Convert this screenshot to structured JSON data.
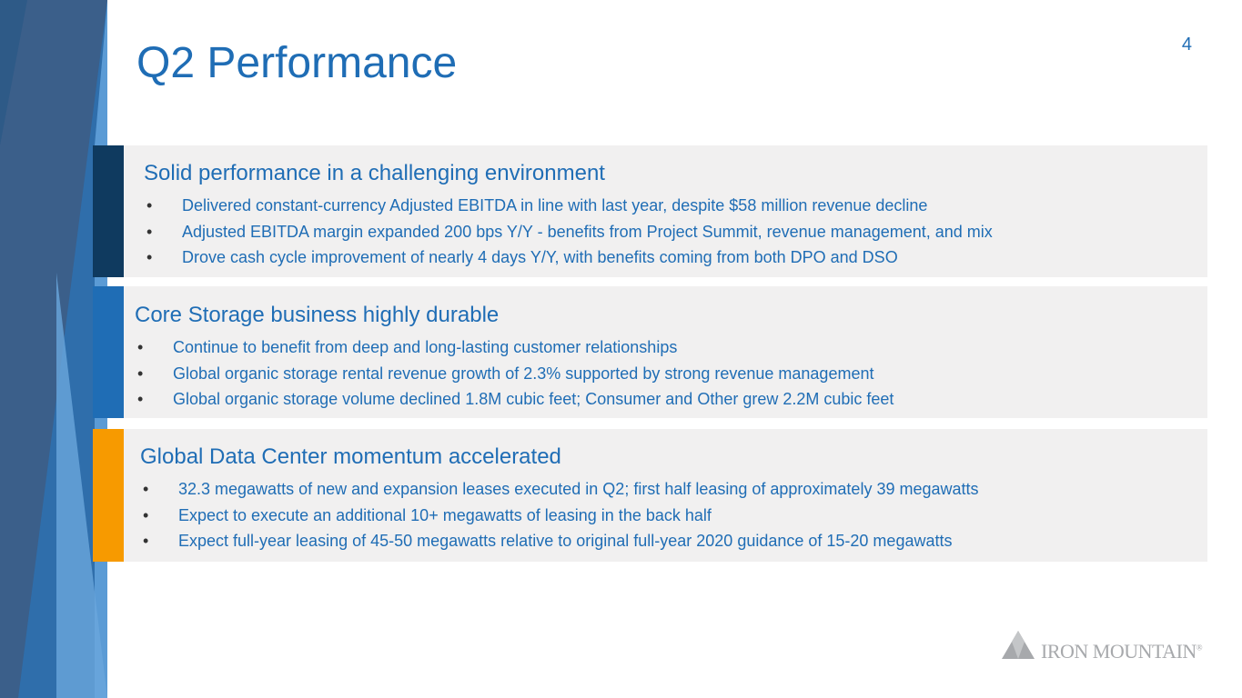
{
  "slide": {
    "page_number": "4",
    "title": "Q2 Performance"
  },
  "colors": {
    "title_blue": "#1f6db5",
    "panel_bg": "#f1f0f0",
    "bar_navy": "#0f3a5f",
    "bar_blue": "#1f6db5",
    "bar_orange": "#f79a00"
  },
  "panels": [
    {
      "heading": "Solid performance in a challenging environment",
      "bullets": [
        "Delivered constant-currency Adjusted EBITDA in line with last year, despite $58 million revenue decline",
        "Adjusted EBITDA margin expanded 200 bps Y/Y - benefits from Project Summit, revenue management, and mix",
        "Drove cash cycle improvement of nearly 4 days Y/Y, with benefits coming from both DPO and DSO"
      ]
    },
    {
      "heading": "Core Storage business highly durable",
      "bullets": [
        "Continue to benefit from deep and long-lasting customer relationships",
        "Global organic storage rental revenue growth of 2.3% supported by strong revenue management",
        "Global organic storage volume declined 1.8M cubic feet; Consumer and Other grew 2.2M cubic feet"
      ]
    },
    {
      "heading": "Global Data Center momentum accelerated",
      "bullets": [
        "32.3 megawatts of new and expansion leases executed in Q2; first half leasing of approximately 39 megawatts",
        "Expect to execute an additional 10+ megawatts of leasing in the back half",
        "Expect full-year leasing of 45-50 megawatts relative to original full-year 2020 guidance of 15-20 megawatts"
      ]
    }
  ],
  "bullet_char": "•",
  "logo": {
    "text": "IRON MOUNTAIN",
    "mark": "®",
    "icon": "mountain-icon"
  }
}
